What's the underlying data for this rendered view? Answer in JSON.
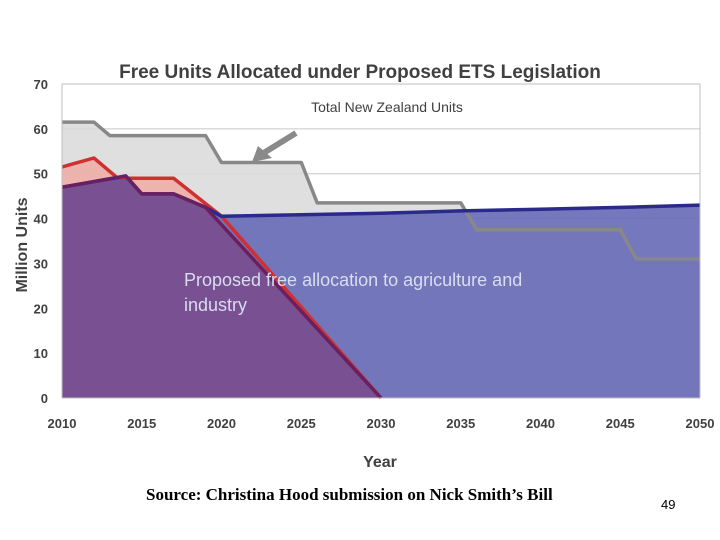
{
  "chart_data": {
    "type": "area",
    "title": "Free Units Allocated under Proposed ETS Legislation",
    "xlabel": "Year",
    "ylabel": "Million Units",
    "xlim": [
      2010,
      2050
    ],
    "ylim": [
      0,
      70
    ],
    "xticks": [
      2010,
      2015,
      2020,
      2025,
      2030,
      2035,
      2040,
      2045,
      2050
    ],
    "yticks": [
      0,
      10,
      20,
      30,
      40,
      50,
      60,
      70
    ],
    "grid": true,
    "series": [
      {
        "name": "Total New Zealand Units",
        "color": "#888888",
        "fill": "#d9d9d9",
        "x": [
          2010,
          2010.5,
          2012,
          2013,
          2019,
          2020,
          2025,
          2026,
          2035,
          2036,
          2045,
          2046,
          2050
        ],
        "y": [
          61.5,
          61.5,
          61.5,
          58.5,
          58.5,
          52.5,
          52.5,
          43.5,
          43.5,
          37.5,
          37.5,
          31,
          31
        ]
      },
      {
        "color": "#d03030",
        "fill": "#f0a8a0",
        "x": [
          2010,
          2010.5,
          2012,
          2013.5,
          2017,
          2020,
          2030
        ],
        "y": [
          51.5,
          52,
          53.5,
          49,
          49,
          40.5,
          0
        ]
      },
      {
        "color": "#2a2a8a",
        "fill": "#6a6cb8",
        "x": [
          2010,
          2014,
          2015,
          2017,
          2019,
          2020,
          2030,
          2035,
          2040,
          2045,
          2050
        ],
        "y": [
          47,
          49.5,
          45.5,
          45.5,
          42.5,
          40.5,
          41.2,
          41.7,
          42.1,
          42.5,
          43
        ]
      },
      {
        "color": "#6a2060",
        "fill": "#7a4a8a",
        "x": [
          2010,
          2014,
          2015,
          2017,
          2019,
          2030
        ],
        "y": [
          47,
          49.5,
          45.5,
          45.5,
          42.5,
          0
        ]
      }
    ],
    "annotations": [
      {
        "text": "Total New Zealand Units"
      },
      {
        "text": "Proposed free allocation to agriculture and industry"
      }
    ]
  },
  "labels": {
    "source": "Source: Christina Hood submission on Nick Smith’s Bill",
    "page_number": "49",
    "proposed_line1": "Proposed free allocation to agriculture and",
    "proposed_line2": "industry"
  }
}
